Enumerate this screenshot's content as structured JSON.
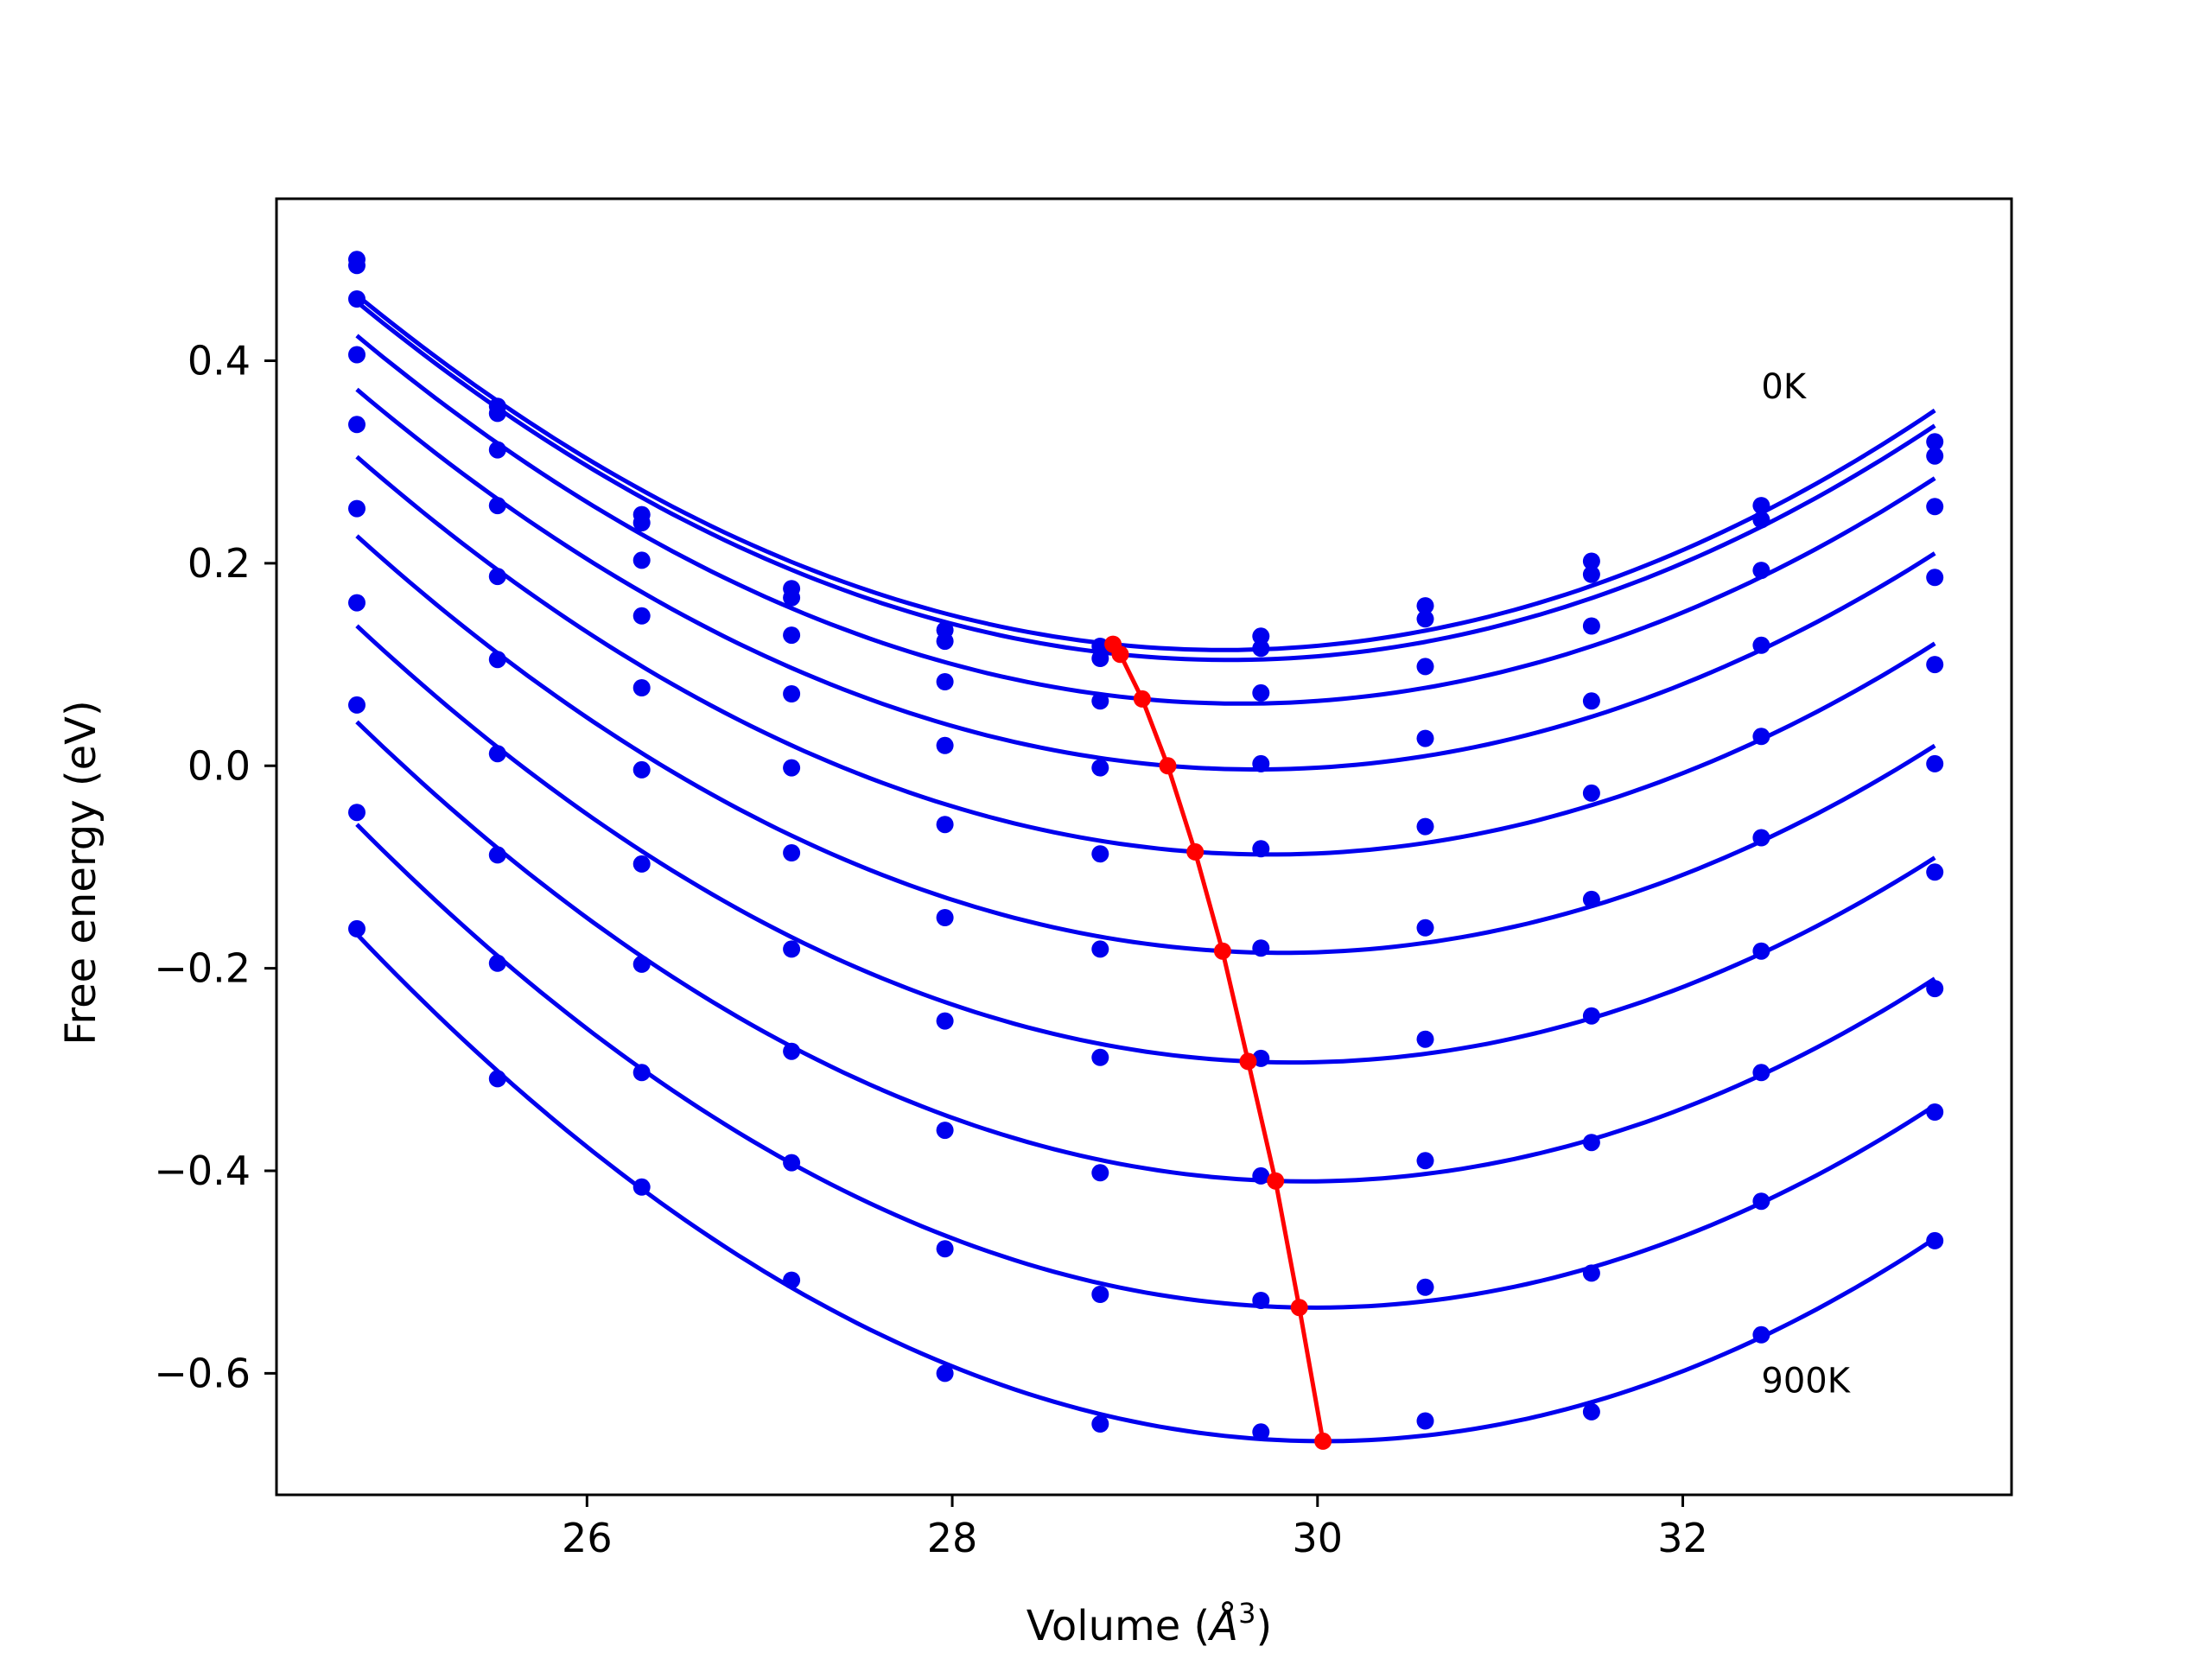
{
  "chart_data": {
    "type": "scatter",
    "title": "",
    "xlabel": "Volume (",
    "xlabel_unit": "Å",
    "xlabel_exp": "3",
    "xlabel_close": ")",
    "ylabel": "Free energy (eV)",
    "xlim": [
      24.3,
      33.8
    ],
    "ylim": [
      -0.72,
      0.56
    ],
    "xticks": [
      26,
      28,
      30,
      32
    ],
    "xtick_labels": [
      "26",
      "28",
      "30",
      "32"
    ],
    "yticks": [
      -0.6,
      -0.4,
      -0.2,
      0.0,
      0.2,
      0.4
    ],
    "ytick_labels": [
      "−0.6",
      "−0.4",
      "−0.2",
      "0.0",
      "0.2",
      "0.4"
    ],
    "grid": false,
    "annotations": [
      {
        "text": "0K",
        "x": 32.43,
        "y": 0.375
      },
      {
        "text": "900K",
        "x": 32.43,
        "y": -0.607
      }
    ],
    "colors": {
      "curves": "#0000ee",
      "minimum_line": "#ff0000",
      "axes": "#000000"
    },
    "volumes": [
      24.74,
      25.51,
      26.3,
      27.12,
      27.96,
      28.81,
      29.69,
      30.59,
      31.5,
      32.43,
      33.38
    ],
    "series": [
      {
        "minimum": [
          28.88,
          0.12
        ],
        "values": [
          0.5,
          0.355,
          0.248,
          0.175,
          0.134,
          0.118,
          0.128,
          0.158,
          0.202,
          0.257,
          0.32
        ]
      },
      {
        "minimum": [
          28.92,
          0.11
        ],
        "values": [
          0.494,
          0.348,
          0.24,
          0.166,
          0.123,
          0.106,
          0.116,
          0.145,
          0.189,
          0.243,
          0.306
        ]
      },
      {
        "minimum": [
          29.04,
          0.066
        ],
        "values": [
          0.461,
          0.312,
          0.203,
          0.129,
          0.083,
          0.064,
          0.072,
          0.098,
          0.138,
          0.193,
          0.256
        ]
      },
      {
        "minimum": [
          29.18,
          0.0
        ],
        "values": [
          0.406,
          0.257,
          0.148,
          0.071,
          0.02,
          -0.002,
          0.002,
          0.027,
          0.064,
          0.119,
          0.186
        ]
      },
      {
        "minimum": [
          29.33,
          -0.085
        ],
        "values": [
          0.337,
          0.187,
          0.077,
          -0.002,
          -0.058,
          -0.087,
          -0.082,
          -0.06,
          -0.027,
          0.029,
          0.1
        ]
      },
      {
        "minimum": [
          29.48,
          -0.183
        ],
        "values": [
          0.254,
          0.105,
          -0.004,
          -0.086,
          -0.15,
          -0.181,
          -0.18,
          -0.16,
          -0.132,
          -0.071,
          0.002
        ]
      },
      {
        "minimum": [
          29.62,
          -0.292
        ],
        "values": [
          0.161,
          0.012,
          -0.097,
          -0.181,
          -0.252,
          -0.288,
          -0.289,
          -0.27,
          -0.247,
          -0.183,
          -0.105
        ]
      },
      {
        "minimum": [
          29.77,
          -0.41
        ],
        "values": [
          0.06,
          -0.088,
          -0.196,
          -0.282,
          -0.36,
          -0.402,
          -0.405,
          -0.39,
          -0.372,
          -0.303,
          -0.22
        ]
      },
      {
        "minimum": [
          29.9,
          -0.535
        ],
        "values": [
          -0.046,
          -0.195,
          -0.303,
          -0.392,
          -0.477,
          -0.522,
          -0.528,
          -0.515,
          -0.501,
          -0.43,
          -0.342
        ]
      },
      {
        "minimum": [
          30.03,
          -0.667
        ],
        "values": [
          -0.161,
          -0.309,
          -0.416,
          -0.508,
          -0.6,
          -0.65,
          -0.658,
          -0.647,
          -0.638,
          -0.562,
          -0.469
        ]
      }
    ]
  }
}
